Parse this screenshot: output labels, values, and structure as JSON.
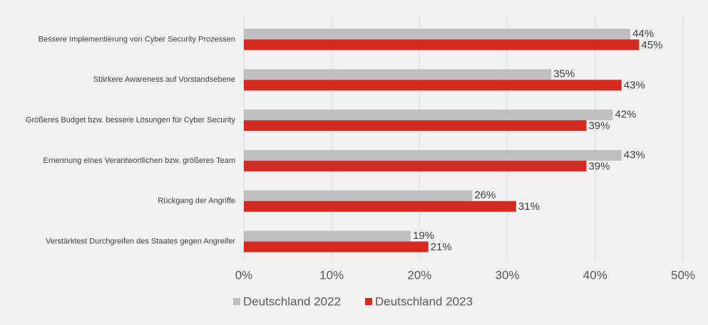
{
  "chart_data": {
    "type": "bar",
    "orientation": "horizontal",
    "categories": [
      "Bessere Implementierung von Cyber Security Prozessen",
      "Stärkere Awareness auf Vorstandsebene",
      "Größeres Budget bzw. bessere Lösungen für Cyber Security",
      "Ernennung eines  Verantwortlichen bzw. größeres Team",
      "Rückgang der Angriffe",
      "Verstärktest Durchgreifen des Staates gegen Angreifer"
    ],
    "series": [
      {
        "name": "Deutschland 2022",
        "color": "#bfbfbf",
        "values": [
          44,
          35,
          42,
          43,
          26,
          19
        ],
        "value_labels": [
          "44%",
          "35%",
          "42%",
          "43%",
          "26%",
          "19%"
        ]
      },
      {
        "name": "Deutschland 2023",
        "color": "#d42a1f",
        "values": [
          45,
          43,
          39,
          39,
          31,
          21
        ],
        "value_labels": [
          "45%",
          "43%",
          "39%",
          "39%",
          "31%",
          "21%"
        ]
      }
    ],
    "xlim": [
      0,
      50
    ],
    "xticks": [
      {
        "value": 0,
        "label": "0%"
      },
      {
        "value": 10,
        "label": "10%"
      },
      {
        "value": 20,
        "label": "20%"
      },
      {
        "value": 30,
        "label": "30%"
      },
      {
        "value": 40,
        "label": "40%"
      },
      {
        "value": 50,
        "label": "50%"
      }
    ],
    "grid": true,
    "legend": "bottom"
  }
}
